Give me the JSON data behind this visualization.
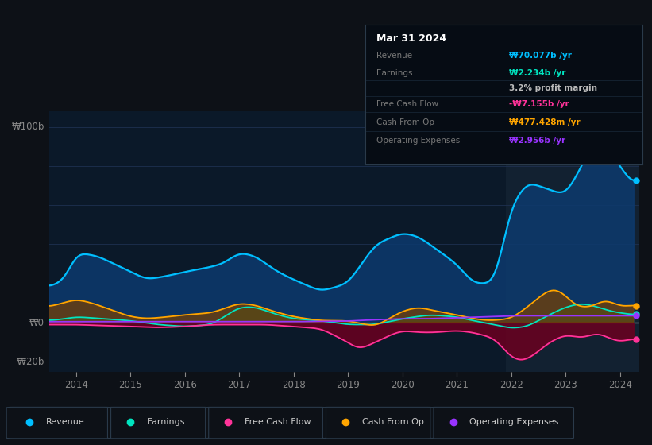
{
  "bg_color": "#0d1117",
  "plot_bg_color": "#0b1929",
  "grid_color": "#1e3050",
  "revenue_color": "#00bfff",
  "earnings_color": "#00e5c0",
  "fcf_color": "#ff3399",
  "cashop_color": "#ffa500",
  "opex_color": "#9933ff",
  "ylabel_100": "₩100b",
  "ylabel_0": "₩0",
  "ylabel_neg20": "-₩20b",
  "legend": [
    {
      "label": "Revenue",
      "color": "#00bfff"
    },
    {
      "label": "Earnings",
      "color": "#00e5c0"
    },
    {
      "label": "Free Cash Flow",
      "color": "#ff3399"
    },
    {
      "label": "Cash From Op",
      "color": "#ffa500"
    },
    {
      "label": "Operating Expenses",
      "color": "#9933ff"
    }
  ],
  "tooltip_title": "Mar 31 2024",
  "tooltip_rows": [
    {
      "label": "Revenue",
      "value": "₩70.077b /yr",
      "vcolor": "#00bfff"
    },
    {
      "label": "Earnings",
      "value": "₩2.234b /yr",
      "vcolor": "#00e5c0"
    },
    {
      "label": "",
      "value": "3.2% profit margin",
      "vcolor": "#bbbbbb"
    },
    {
      "label": "Free Cash Flow",
      "value": "-₩7.155b /yr",
      "vcolor": "#ff3399"
    },
    {
      "label": "Cash From Op",
      "value": "₩477.428m /yr",
      "vcolor": "#ffa500"
    },
    {
      "label": "Operating Expenses",
      "value": "₩2.956b /yr",
      "vcolor": "#9933ff"
    }
  ]
}
